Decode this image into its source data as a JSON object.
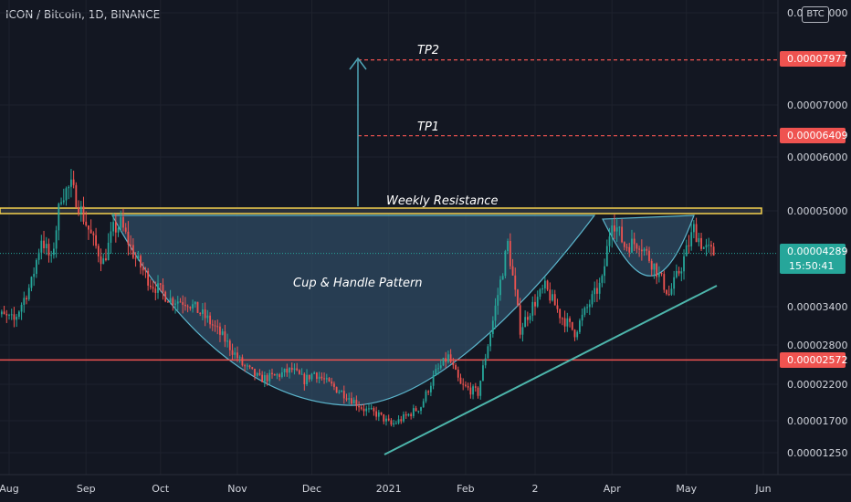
{
  "header": {
    "title": "ICON / Bitcoin, 1D, BINANCE"
  },
  "price_axis": {
    "currency_badge": "BTC"
  },
  "annotations": {
    "tp2": "TP2",
    "tp1": "TP1",
    "weekly_resistance": "Weekly Resistance",
    "pattern": "Cup & Handle Pattern"
  },
  "price_tags": {
    "tp2": "0.00007977",
    "tp1": "0.00006409",
    "current": "0.00004289",
    "countdown": "15:50:41",
    "support": "0.00002572"
  },
  "colors": {
    "background": "#131722",
    "up": "#26a69a",
    "down": "#ef5350",
    "target_line": "#ef5350",
    "resistance_fill": "#2a2f3a",
    "resistance_border": "#f5d04c",
    "cup_fill": "#2f4b63",
    "trendline": "#4db6ac",
    "arrow": "#4fa6b8"
  },
  "chart_data": {
    "type": "candlestick",
    "title": "ICON / Bitcoin, 1D, BINANCE",
    "y_ticks": [
      "0.00009000",
      "0.00007000",
      "0.00006000",
      "0.00005000",
      "0.00003400",
      "0.00002800",
      "0.00002200",
      "0.00001700",
      "0.00001250"
    ],
    "x_ticks": [
      "Aug",
      "Sep",
      "Oct",
      "Nov",
      "Dec",
      "2021",
      "Feb",
      "2",
      "Apr",
      "May",
      "Jun"
    ],
    "levels": {
      "tp2": 7.977e-05,
      "tp1": 6.409e-05,
      "weekly_resistance": 5e-05,
      "support": 2.572e-05,
      "current_price": 4.289e-05
    },
    "price_path": [
      [
        "2020-07-25",
        3.32e-05
      ],
      [
        "2020-08-03",
        3.18e-05
      ],
      [
        "2020-08-10",
        3.8e-05
      ],
      [
        "2020-08-14",
        4.55e-05
      ],
      [
        "2020-08-18",
        4.15e-05
      ],
      [
        "2020-08-22",
        5.3e-05
      ],
      [
        "2020-08-26",
        5.45e-05
      ],
      [
        "2020-08-31",
        4.9e-05
      ],
      [
        "2020-09-04",
        4.48e-05
      ],
      [
        "2020-09-08",
        4.15e-05
      ],
      [
        "2020-09-12",
        4.68e-05
      ],
      [
        "2020-09-15",
        4.78e-05
      ],
      [
        "2020-09-21",
        4.2e-05
      ],
      [
        "2020-09-27",
        3.8e-05
      ],
      [
        "2020-10-05",
        3.52e-05
      ],
      [
        "2020-10-12",
        3.48e-05
      ],
      [
        "2020-10-20",
        3.2e-05
      ],
      [
        "2020-10-27",
        2.88e-05
      ],
      [
        "2020-11-03",
        2.5e-05
      ],
      [
        "2020-11-10",
        2.28e-05
      ],
      [
        "2020-11-16",
        2.32e-05
      ],
      [
        "2020-11-23",
        2.42e-05
      ],
      [
        "2020-11-28",
        2.26e-05
      ],
      [
        "2020-12-02",
        2.38e-05
      ],
      [
        "2020-12-08",
        2.2e-05
      ],
      [
        "2020-12-15",
        2.05e-05
      ],
      [
        "2020-12-22",
        1.86e-05
      ],
      [
        "2020-12-28",
        1.78e-05
      ],
      [
        "2021-01-02",
        1.64e-05
      ],
      [
        "2021-01-08",
        1.76e-05
      ],
      [
        "2021-01-14",
        1.9e-05
      ],
      [
        "2021-01-20",
        2.38e-05
      ],
      [
        "2021-01-25",
        2.62e-05
      ],
      [
        "2021-01-30",
        2.18e-05
      ],
      [
        "2021-02-06",
        2.08e-05
      ],
      [
        "2021-02-12",
        3.18e-05
      ],
      [
        "2021-02-18",
        4.45e-05
      ],
      [
        "2021-02-23",
        3.05e-05
      ],
      [
        "2021-02-28",
        3.42e-05
      ],
      [
        "2021-03-05",
        3.72e-05
      ],
      [
        "2021-03-11",
        3.28e-05
      ],
      [
        "2021-03-17",
        3e-05
      ],
      [
        "2021-03-23",
        3.46e-05
      ],
      [
        "2021-03-28",
        3.82e-05
      ],
      [
        "2021-04-01",
        4.9e-05
      ],
      [
        "2021-04-06",
        4.42e-05
      ],
      [
        "2021-04-12",
        4.48e-05
      ],
      [
        "2021-04-18",
        4.08e-05
      ],
      [
        "2021-04-24",
        3.6e-05
      ],
      [
        "2021-04-29",
        4.08e-05
      ],
      [
        "2021-05-04",
        4.7e-05
      ],
      [
        "2021-05-08",
        4.38e-05
      ],
      [
        "2021-05-12",
        4.29e-05
      ]
    ]
  }
}
